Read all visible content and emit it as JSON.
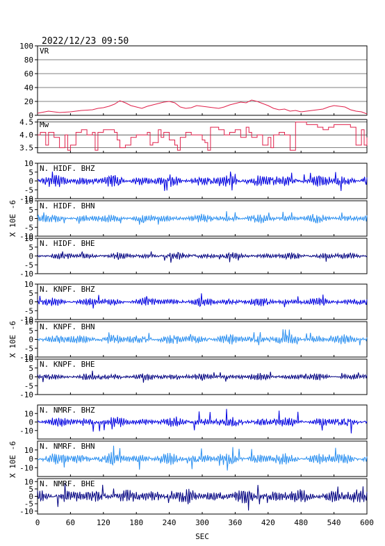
{
  "header": {
    "datetime": "2022/12/23 09:50"
  },
  "chart_data": {
    "type": "line",
    "xlabel": "SEC",
    "xlim": [
      0,
      600
    ],
    "xticks": [
      0,
      60,
      120,
      180,
      240,
      300,
      360,
      420,
      480,
      540,
      600
    ],
    "colors": {
      "vr": "#e0204a",
      "mw": "#e0204a",
      "bhz": "#0000e0",
      "bhn": "#2a8ff0",
      "bhe": "#000080",
      "axis": "#000000"
    },
    "panels": [
      {
        "id": "vr",
        "label": "VR",
        "kind": "series",
        "color_key": "vr",
        "ylim": [
          0,
          100
        ],
        "yticks": [
          "100",
          "80",
          "60",
          "40",
          "20",
          "0"
        ],
        "ytick_values": [
          100,
          80,
          60,
          40,
          20,
          0
        ],
        "grid": true,
        "x": [
          0,
          20,
          40,
          60,
          80,
          100,
          110,
          120,
          130,
          140,
          150,
          160,
          170,
          180,
          190,
          200,
          210,
          220,
          230,
          240,
          250,
          260,
          270,
          280,
          290,
          300,
          310,
          320,
          330,
          340,
          350,
          360,
          370,
          380,
          390,
          400,
          410,
          420,
          430,
          440,
          450,
          460,
          470,
          480,
          490,
          500,
          510,
          520,
          530,
          540,
          550,
          560,
          570,
          580,
          590,
          600
        ],
        "y": [
          3,
          6,
          4,
          5,
          7,
          8,
          10,
          11,
          13,
          16,
          21,
          18,
          14,
          12,
          10,
          13,
          15,
          17,
          19,
          20,
          18,
          12,
          10,
          11,
          14,
          13,
          12,
          11,
          10,
          12,
          15,
          17,
          19,
          18,
          22,
          20,
          17,
          14,
          10,
          8,
          9,
          6,
          7,
          5,
          6,
          7,
          8,
          9,
          12,
          14,
          13,
          12,
          8,
          6,
          5,
          2
        ]
      },
      {
        "id": "mw",
        "label": "Mw",
        "kind": "series",
        "color_key": "mw",
        "step": true,
        "ylim": [
          3.3,
          4.6
        ],
        "yticks": [
          "4.5",
          "4.0",
          "3.5"
        ],
        "ytick_values": [
          4.5,
          4.0,
          3.5
        ],
        "grid": true,
        "x": [
          0,
          5,
          15,
          20,
          30,
          40,
          50,
          55,
          60,
          70,
          80,
          90,
          100,
          105,
          110,
          120,
          130,
          140,
          145,
          150,
          160,
          170,
          180,
          190,
          200,
          205,
          210,
          220,
          225,
          230,
          240,
          250,
          255,
          260,
          270,
          280,
          290,
          300,
          305,
          310,
          315,
          320,
          330,
          340,
          350,
          360,
          370,
          380,
          385,
          390,
          400,
          410,
          420,
          425,
          430,
          440,
          450,
          460,
          470,
          480,
          485,
          490,
          500,
          510,
          520,
          530,
          540,
          550,
          560,
          570,
          580,
          590,
          595,
          600
        ],
        "y": [
          4.0,
          4.1,
          3.6,
          4.1,
          3.9,
          3.5,
          4.0,
          3.4,
          3.6,
          4.1,
          4.2,
          4.0,
          4.1,
          3.4,
          4.1,
          4.2,
          4.2,
          4.1,
          3.8,
          3.5,
          3.6,
          3.9,
          4.0,
          4.0,
          4.1,
          3.6,
          3.7,
          4.2,
          3.9,
          4.1,
          3.8,
          3.6,
          3.4,
          3.9,
          4.1,
          4.0,
          4.0,
          3.8,
          3.7,
          3.4,
          4.3,
          4.3,
          4.2,
          4.0,
          4.1,
          4.2,
          3.9,
          4.3,
          4.1,
          3.9,
          4.0,
          3.6,
          3.9,
          3.5,
          4.0,
          4.1,
          4.0,
          3.4,
          4.5,
          4.5,
          4.5,
          4.4,
          4.4,
          4.3,
          4.2,
          4.3,
          4.4,
          4.4,
          4.4,
          4.3,
          3.6,
          4.2,
          3.6,
          3.9
        ]
      },
      {
        "id": "hidf_bhz",
        "label": "N. HIDF. BHZ",
        "kind": "wave",
        "color_key": "bhz",
        "ylim": [
          -10,
          10
        ],
        "yticks": [
          "10",
          "5",
          "0",
          "-5",
          "-10"
        ],
        "ytick_values": [
          10,
          5,
          0,
          -5,
          -10
        ],
        "typical_amplitude": 3.5,
        "peak_amplitude": 7
      },
      {
        "id": "hidf_bhn",
        "label": "N. HIDF. BHN",
        "kind": "wave",
        "color_key": "bhn",
        "ylim": [
          -10,
          10
        ],
        "yticks": [
          "10",
          "5",
          "0",
          "-5",
          "-10"
        ],
        "ytick_values": [
          10,
          5,
          0,
          -5,
          -10
        ],
        "typical_amplitude": 2.5,
        "peak_amplitude": 5
      },
      {
        "id": "hidf_bhe",
        "label": "N. HIDF. BHE",
        "kind": "wave",
        "color_key": "bhe",
        "ylim": [
          -10,
          10
        ],
        "yticks": [
          "10",
          "5",
          "0",
          "-5",
          "-10"
        ],
        "ytick_values": [
          10,
          5,
          0,
          -5,
          -10
        ],
        "typical_amplitude": 2,
        "peak_amplitude": 4
      },
      {
        "id": "knpf_bhz",
        "label": "N. KNPF. BHZ",
        "kind": "wave",
        "color_key": "bhz",
        "ylim": [
          -10,
          10
        ],
        "yticks": [
          "10",
          "5",
          "0",
          "-5",
          "-10"
        ],
        "ytick_values": [
          10,
          5,
          0,
          -5,
          -10
        ],
        "typical_amplitude": 2.5,
        "peak_amplitude": 5
      },
      {
        "id": "knpf_bhn",
        "label": "N. KNPF. BHN",
        "kind": "wave",
        "color_key": "bhn",
        "ylim": [
          -10,
          10
        ],
        "yticks": [
          "10",
          "5",
          "0",
          "-5",
          "-10"
        ],
        "ytick_values": [
          10,
          5,
          0,
          -5,
          -10
        ],
        "typical_amplitude": 3,
        "peak_amplitude": 6
      },
      {
        "id": "knpf_bhe",
        "label": "N. KNPF. BHE",
        "kind": "wave",
        "color_key": "bhe",
        "ylim": [
          -10,
          10
        ],
        "yticks": [
          "10",
          "5",
          "0",
          "-5",
          "-10"
        ],
        "ytick_values": [
          10,
          5,
          0,
          -5,
          -10
        ],
        "typical_amplitude": 2,
        "peak_amplitude": 4
      },
      {
        "id": "nmrf_bhz",
        "label": "N. NMRF. BHZ",
        "kind": "wave",
        "color_key": "bhz",
        "ylim": [
          -20,
          20
        ],
        "yticks": [
          "10",
          "0",
          "-10"
        ],
        "ytick_values": [
          10,
          0,
          -10
        ],
        "typical_amplitude": 6,
        "peak_amplitude": 16
      },
      {
        "id": "nmrf_bhn",
        "label": "N. NMRF. BHN",
        "kind": "wave",
        "color_key": "bhn",
        "ylim": [
          -20,
          20
        ],
        "yticks": [
          "10",
          "0",
          "-10"
        ],
        "ytick_values": [
          10,
          0,
          -10
        ],
        "typical_amplitude": 7,
        "peak_amplitude": 16
      },
      {
        "id": "nmrf_bhe",
        "label": "N. NMRF. BHE",
        "kind": "wave",
        "color_key": "bhe",
        "ylim": [
          -12,
          12
        ],
        "yticks": [
          "10",
          "5",
          "0",
          "-5",
          "-10"
        ],
        "ytick_values": [
          10,
          5,
          0,
          -5,
          -10
        ],
        "typical_amplitude": 5,
        "peak_amplitude": 11
      }
    ],
    "unit_labels": [
      "X 10E -6",
      "X 10E -6",
      "X 10E -6",
      "X 10E -6",
      "X 10E -6",
      "X 10E -6",
      "X 10E -6",
      "X 10E -6",
      "X 10E -6"
    ]
  }
}
